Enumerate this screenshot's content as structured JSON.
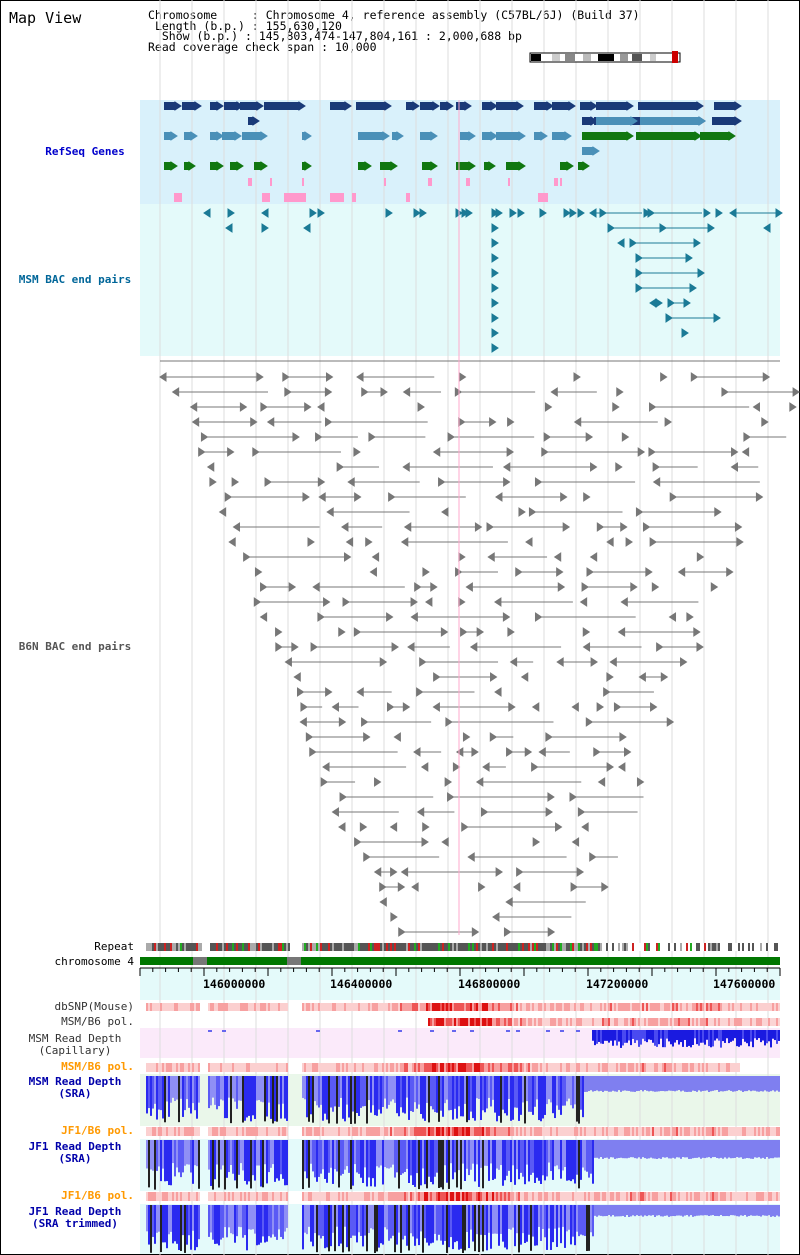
{
  "title": "Map View",
  "info": {
    "chromosome_label": "Chromosome",
    "chromosome_value": "Chromosome 4, reference assembly (C57BL/6J) (Build 37)",
    "length_label": "Length (b.p.)",
    "length_value": "155,630,120",
    "show_label": "Show (b.p.)",
    "show_value": "145,803,474-147,804,161 : 2,000,688 bp",
    "span_label": "Read coverage check span",
    "span_value": "10,000"
  },
  "tracks": {
    "refseq": "RefSeq Genes",
    "msm_bac": "MSM BAC end pairs",
    "b6n_bac": "B6N BAC end pairs",
    "repeat": "Repeat",
    "chromosome": "chromosome 4",
    "dbsnp": "dbSNP(Mouse)",
    "msm_b6_pol": "MSM/B6 pol.",
    "msm_read_cap": "MSM Read Depth\n(Capillary)",
    "msm_b6_pol2": "MSM/B6 pol.",
    "msm_read_sra": "MSM Read Depth\n(SRA)",
    "jf1_b6_pol": "JF1/B6 pol.",
    "jf1_read_sra": "JF1 Read Depth\n(SRA)",
    "jf1_b6_pol2": "JF1/B6 pol.",
    "jf1_read_trim": "JF1 Read Depth\n(SRA trimmed)"
  },
  "ruler": {
    "ticks": [
      "146000000",
      "146400000",
      "146800000",
      "147200000",
      "147600000"
    ]
  },
  "colors": {
    "refseq_label": "#0000cc",
    "msm_label": "#006699",
    "b6n_label": "#555555",
    "pol_label": "#ff9900",
    "depth_label": "#0000aa",
    "refseq_bg": "#d9f1fb",
    "msm_bg": "#e4fafa",
    "gene_dark": "#1a3a78",
    "gene_mid": "#4a90b8",
    "gene_green": "#117711",
    "gene_pink": "#ff99cc",
    "chrom_green": "#007700"
  }
}
